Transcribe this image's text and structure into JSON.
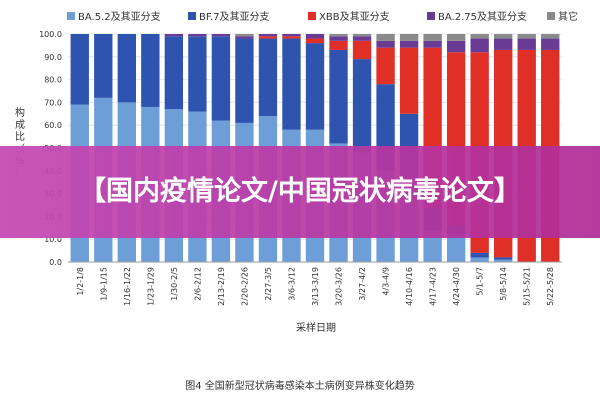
{
  "chart_data": {
    "type": "bar",
    "stacked": true,
    "ylabel": "构成比（%）",
    "xlabel": "采样日期",
    "ylim": [
      0,
      100
    ],
    "yticks": [
      "0.0",
      "10.0",
      "20.0",
      "30.0",
      "40.0",
      "50.0",
      "60.0",
      "70.0",
      "80.0",
      "90.0",
      "100.0"
    ],
    "categories": [
      "1/2-1/8",
      "1/9-1/15",
      "1/16-1/22",
      "1/23-1/29",
      "1/30-2/5",
      "2/6-2/12",
      "2/13-2/19",
      "2/20-2/26",
      "2/27-3/5",
      "3/6-3/12",
      "3/13-3/19",
      "3/20-3/26",
      "3/27-4/2",
      "4/3-4/9",
      "4/10-4/16",
      "4/17-4/23",
      "4/24-4/30",
      "5/1-5/7",
      "5/8-5/14",
      "5/15-5/21",
      "5/22-5/28"
    ],
    "series": [
      {
        "name": "BA.5.2及其亚分支",
        "color": "#6d9ed8",
        "values": [
          69,
          72,
          70,
          68,
          67,
          66,
          62,
          61,
          64,
          58,
          58,
          52,
          48,
          40,
          36,
          14,
          12,
          2,
          1,
          0,
          0
        ]
      },
      {
        "name": "BF.7及其亚分支",
        "color": "#2e54b0",
        "values": [
          31,
          28,
          30,
          32,
          32,
          33,
          37,
          37,
          34,
          40,
          38,
          41,
          41,
          38,
          29,
          10,
          4,
          2,
          1,
          0,
          0
        ]
      },
      {
        "name": "XBB及其亚分支",
        "color": "#e02f27",
        "values": [
          0,
          0,
          0,
          0,
          0,
          0,
          0,
          0,
          1,
          1,
          2,
          4,
          8,
          16,
          29,
          70,
          76,
          88,
          91,
          93,
          93
        ]
      },
      {
        "name": "BA.2.75及其亚分支",
        "color": "#6a3b95",
        "values": [
          0,
          0,
          0,
          0,
          1,
          1,
          1,
          1,
          1,
          1,
          2,
          2,
          2,
          3,
          3,
          3,
          5,
          6,
          5,
          5,
          5
        ]
      },
      {
        "name": "其它",
        "color": "#8a8a8a",
        "values": [
          0,
          0,
          0,
          0,
          0,
          0,
          0,
          1,
          0,
          0,
          0,
          1,
          1,
          3,
          3,
          3,
          3,
          2,
          2,
          2,
          2
        ]
      }
    ],
    "caption": "图4 全国新型冠状病毒感染本土病例变异株变化趋势"
  },
  "banner": {
    "title": "【国内疫情论文/中国冠状病毒论文】"
  }
}
